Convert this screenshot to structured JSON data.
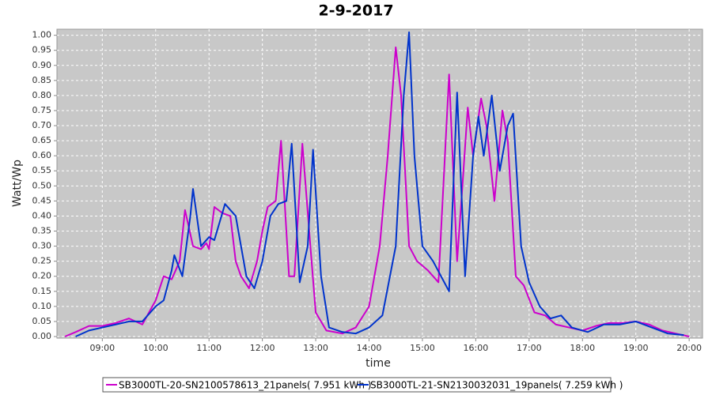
{
  "chart_data": {
    "type": "line",
    "title": "2-9-2017",
    "x_label": "time",
    "y_label": "Watt/Wp",
    "xlim": [
      "08:09",
      "20:15"
    ],
    "xticks": [
      "09:00",
      "10:00",
      "11:00",
      "12:00",
      "13:00",
      "14:00",
      "15:00",
      "16:00",
      "17:00",
      "18:00",
      "19:00",
      "20:00"
    ],
    "ylim": [
      0,
      1.02
    ],
    "yticks": [
      {
        "value": 0,
        "label": "0.00"
      },
      {
        "value": 0.05,
        "label": "0.05"
      },
      {
        "value": 0.1,
        "label": "0.10"
      },
      {
        "value": 0.15,
        "label": "0.15"
      },
      {
        "value": 0.2,
        "label": "0.20"
      },
      {
        "value": 0.25,
        "label": "0.25"
      },
      {
        "value": 0.3,
        "label": "0.30"
      },
      {
        "value": 0.35,
        "label": "0.35"
      },
      {
        "value": 0.4,
        "label": "0.40"
      },
      {
        "value": 0.45,
        "label": "0.45"
      },
      {
        "value": 0.5,
        "label": "0.50"
      },
      {
        "value": 0.55,
        "label": "0.55"
      },
      {
        "value": 0.6,
        "label": "0.60"
      },
      {
        "value": 0.65,
        "label": "0.65"
      },
      {
        "value": 0.7,
        "label": "0.70"
      },
      {
        "value": 0.75,
        "label": "0.75"
      },
      {
        "value": 0.8,
        "label": "0.80"
      },
      {
        "value": 0.85,
        "label": "0.85"
      },
      {
        "value": 0.9,
        "label": "0.90"
      },
      {
        "value": 0.95,
        "label": "0.95"
      },
      {
        "value": 1,
        "label": "1.00"
      }
    ],
    "grid": true,
    "series": [
      {
        "name": "SB3000TL-20-SN2100578613_21panels( 7.951 kWh )",
        "color": "#cc00cc",
        "x": [
          "08:18",
          "08:30",
          "08:45",
          "09:00",
          "09:15",
          "09:30",
          "09:45",
          "10:00",
          "10:09",
          "10:18",
          "10:27",
          "10:33",
          "10:42",
          "10:51",
          "10:57",
          "11:00",
          "11:06",
          "11:15",
          "11:24",
          "11:30",
          "11:36",
          "11:45",
          "11:54",
          "12:00",
          "12:06",
          "12:15",
          "12:21",
          "12:30",
          "12:36",
          "12:45",
          "12:54",
          "13:00",
          "13:12",
          "13:30",
          "13:45",
          "14:00",
          "14:12",
          "14:21",
          "14:30",
          "14:36",
          "14:45",
          "14:54",
          "15:06",
          "15:18",
          "15:30",
          "15:39",
          "15:45",
          "15:51",
          "15:57",
          "16:06",
          "16:12",
          "16:21",
          "16:30",
          "16:36",
          "16:45",
          "16:54",
          "17:06",
          "17:18",
          "17:30",
          "17:45",
          "18:00",
          "18:15",
          "18:30",
          "18:45",
          "19:00",
          "19:15",
          "19:30",
          "19:45",
          "20:00"
        ],
        "values": [
          0,
          0.015,
          0.035,
          0.035,
          0.045,
          0.06,
          0.04,
          0.12,
          0.2,
          0.19,
          0.25,
          0.42,
          0.3,
          0.29,
          0.31,
          0.29,
          0.43,
          0.41,
          0.4,
          0.25,
          0.2,
          0.16,
          0.25,
          0.35,
          0.43,
          0.45,
          0.65,
          0.2,
          0.2,
          0.64,
          0.3,
          0.08,
          0.02,
          0.01,
          0.03,
          0.1,
          0.3,
          0.6,
          0.96,
          0.8,
          0.3,
          0.25,
          0.22,
          0.18,
          0.87,
          0.25,
          0.5,
          0.76,
          0.6,
          0.79,
          0.7,
          0.45,
          0.75,
          0.65,
          0.2,
          0.17,
          0.08,
          0.07,
          0.04,
          0.03,
          0.02,
          0.035,
          0.045,
          0.045,
          0.05,
          0.04,
          0.02,
          0.01,
          0
        ]
      },
      {
        "name": "SB3000TL-21-SN2130032031_19panels( 7.259 kWh )",
        "color": "#0033cc",
        "x": [
          "08:30",
          "08:45",
          "09:00",
          "09:15",
          "09:30",
          "09:45",
          "10:00",
          "10:09",
          "10:18",
          "10:21",
          "10:30",
          "10:39",
          "10:42",
          "10:51",
          "11:00",
          "11:06",
          "11:18",
          "11:30",
          "11:42",
          "11:51",
          "12:00",
          "12:09",
          "12:18",
          "12:27",
          "12:33",
          "12:42",
          "12:51",
          "12:57",
          "13:06",
          "13:15",
          "13:30",
          "13:45",
          "14:00",
          "14:15",
          "14:30",
          "14:39",
          "14:45",
          "14:51",
          "15:00",
          "15:12",
          "15:21",
          "15:30",
          "15:39",
          "15:48",
          "15:57",
          "16:03",
          "16:09",
          "16:18",
          "16:27",
          "16:36",
          "16:42",
          "16:51",
          "17:00",
          "17:12",
          "17:24",
          "17:36",
          "17:48",
          "18:06",
          "18:24",
          "18:42",
          "19:00",
          "19:18",
          "19:36",
          "19:54"
        ],
        "values": [
          0,
          0.02,
          0.03,
          0.04,
          0.05,
          0.05,
          0.1,
          0.12,
          0.22,
          0.27,
          0.2,
          0.4,
          0.49,
          0.3,
          0.33,
          0.32,
          0.44,
          0.4,
          0.2,
          0.16,
          0.25,
          0.4,
          0.44,
          0.45,
          0.64,
          0.18,
          0.3,
          0.62,
          0.2,
          0.03,
          0.015,
          0.01,
          0.03,
          0.07,
          0.3,
          0.8,
          1.01,
          0.6,
          0.3,
          0.25,
          0.2,
          0.15,
          0.81,
          0.2,
          0.6,
          0.73,
          0.6,
          0.8,
          0.55,
          0.7,
          0.74,
          0.3,
          0.18,
          0.1,
          0.06,
          0.07,
          0.03,
          0.015,
          0.04,
          0.04,
          0.05,
          0.03,
          0.01,
          0.005
        ]
      }
    ],
    "legend": "bottom"
  }
}
